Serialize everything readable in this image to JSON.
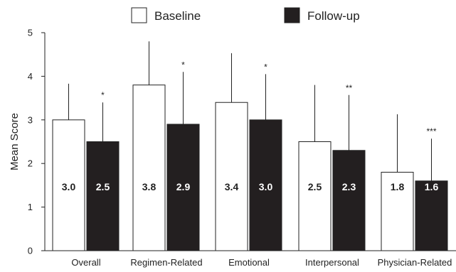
{
  "chart_data": {
    "type": "bar",
    "ylabel": "Mean Score",
    "ylim": [
      0,
      5
    ],
    "yticks": [
      "0",
      "1",
      "2",
      "3",
      "4",
      "5"
    ],
    "legend_position": "top",
    "categories": [
      "Overall",
      "Regimen-Related",
      "Emotional",
      "Interpersonal",
      "Physician-Related"
    ],
    "series": [
      {
        "name": "Baseline",
        "color": "#ffffff",
        "values": [
          3.0,
          3.8,
          3.4,
          2.5,
          1.8
        ],
        "labels": [
          "3.0",
          "3.8",
          "3.4",
          "2.5",
          "1.8"
        ],
        "error_upper": [
          3.83,
          4.8,
          4.53,
          3.8,
          3.13
        ]
      },
      {
        "name": "Follow-up",
        "color": "#231f20",
        "values": [
          2.5,
          2.9,
          3.0,
          2.3,
          1.6
        ],
        "labels": [
          "2.5",
          "2.9",
          "3.0",
          "2.3",
          "1.6"
        ],
        "error_upper": [
          3.4,
          4.1,
          4.05,
          3.57,
          2.57
        ],
        "significance": [
          "*",
          "*",
          "*",
          "**",
          "***"
        ]
      }
    ],
    "grid": false
  }
}
